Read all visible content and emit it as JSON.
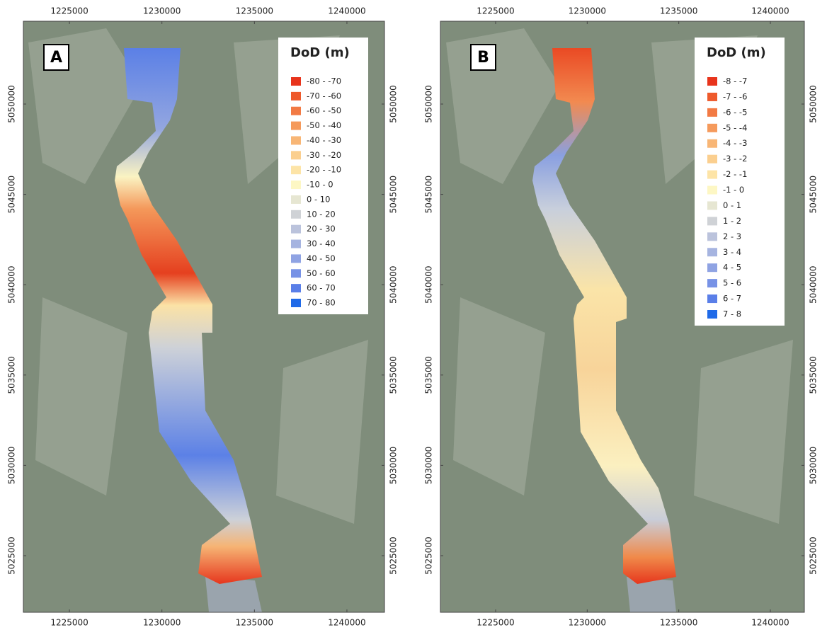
{
  "panels": [
    {
      "label": "A",
      "xlim": [
        1222510,
        1242030
      ],
      "ylim": [
        5021865,
        5054585
      ],
      "xticks": [
        1225000,
        1230000,
        1235000,
        1240000
      ],
      "yticks": [
        5025000,
        5030000,
        5035000,
        5040000,
        5045000,
        5050000
      ],
      "legend": {
        "title": "DoD (m)",
        "items": [
          {
            "label": "-80 - -70",
            "color": "#e8341c"
          },
          {
            "label": "-70 - -60",
            "color": "#ee5a2c"
          },
          {
            "label": "-60 - -50",
            "color": "#f27a44"
          },
          {
            "label": "-50 - -40",
            "color": "#f59a5c"
          },
          {
            "label": "-40 - -30",
            "color": "#f8b676"
          },
          {
            "label": "-30 - -20",
            "color": "#fbcf8f"
          },
          {
            "label": "-20 - -10",
            "color": "#fde4a7"
          },
          {
            "label": "-10 - 0",
            "color": "#fdf7c4"
          },
          {
            "label": "0 - 10",
            "color": "#e6e6d2"
          },
          {
            "label": "10 - 20",
            "color": "#cfd2d6"
          },
          {
            "label": "20 - 30",
            "color": "#bbc3dc"
          },
          {
            "label": "30 - 40",
            "color": "#a6b4e0"
          },
          {
            "label": "40 - 50",
            "color": "#8fa3e3"
          },
          {
            "label": "50 - 60",
            "color": "#7792e6"
          },
          {
            "label": "60 - 70",
            "color": "#5a7fe8"
          },
          {
            "label": "70 - 80",
            "color": "#1f6ae8"
          }
        ]
      }
    },
    {
      "label": "B",
      "xlim": [
        1221985,
        1241856
      ],
      "ylim": [
        5021865,
        5054585
      ],
      "xticks": [
        1225000,
        1230000,
        1235000,
        1240000
      ],
      "yticks": [
        5025000,
        5030000,
        5035000,
        5040000,
        5045000,
        5050000
      ],
      "legend": {
        "title": "DoD (m)",
        "items": [
          {
            "label": "-8 - -7",
            "color": "#e8341c"
          },
          {
            "label": "-7 - -6",
            "color": "#ee5a2c"
          },
          {
            "label": "-6 - -5",
            "color": "#f27a44"
          },
          {
            "label": "-5 - -4",
            "color": "#f59a5c"
          },
          {
            "label": "-4 - -3",
            "color": "#f8b676"
          },
          {
            "label": "-3 - -2",
            "color": "#fbcf8f"
          },
          {
            "label": "-2 - -1",
            "color": "#fde4a7"
          },
          {
            "label": "-1 - 0",
            "color": "#fdf7c4"
          },
          {
            "label": "0 - 1",
            "color": "#e6e6d2"
          },
          {
            "label": "1 - 2",
            "color": "#cfd2d6"
          },
          {
            "label": "2 - 3",
            "color": "#bbc3dc"
          },
          {
            "label": "3 - 4",
            "color": "#a6b4e0"
          },
          {
            "label": "4 - 5",
            "color": "#8fa3e3"
          },
          {
            "label": "5 - 6",
            "color": "#7792e6"
          },
          {
            "label": "6 - 7",
            "color": "#5a7fe8"
          },
          {
            "label": "7 - 8",
            "color": "#1f6ae8"
          }
        ]
      }
    }
  ]
}
